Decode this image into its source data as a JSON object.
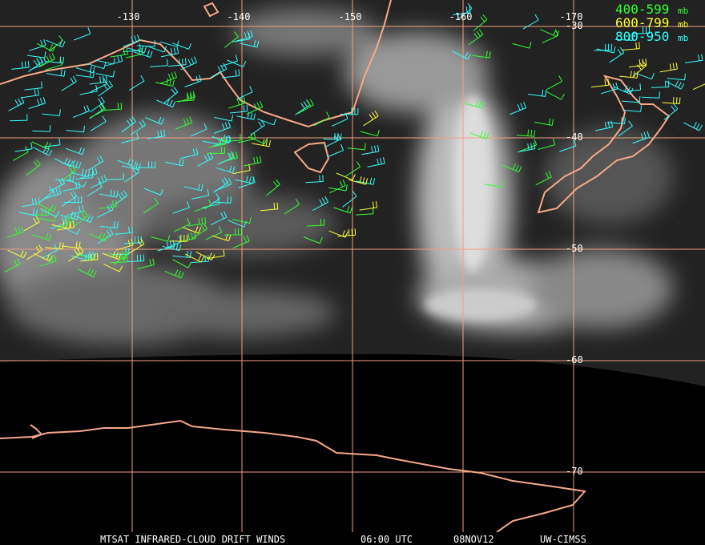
{
  "map": {
    "longitude_labels": [
      "-130",
      "-140",
      "-150",
      "-160",
      "-170"
    ],
    "latitude_labels": [
      "-30",
      "-40",
      "-50",
      "-60",
      "-70"
    ],
    "legend": [
      {
        "range": "400-599",
        "unit": "mb",
        "color": "#33ff33"
      },
      {
        "range": "600-799",
        "unit": "mb",
        "color": "#ffff33"
      },
      {
        "range": "800-950",
        "unit": "mb",
        "color": "#33ffff"
      }
    ],
    "footer": [
      "MTSAT INFRARED-CLOUD DRIFT WINDS",
      "06:00 UTC",
      "08NOV12",
      "UW-CIMSS"
    ]
  }
}
